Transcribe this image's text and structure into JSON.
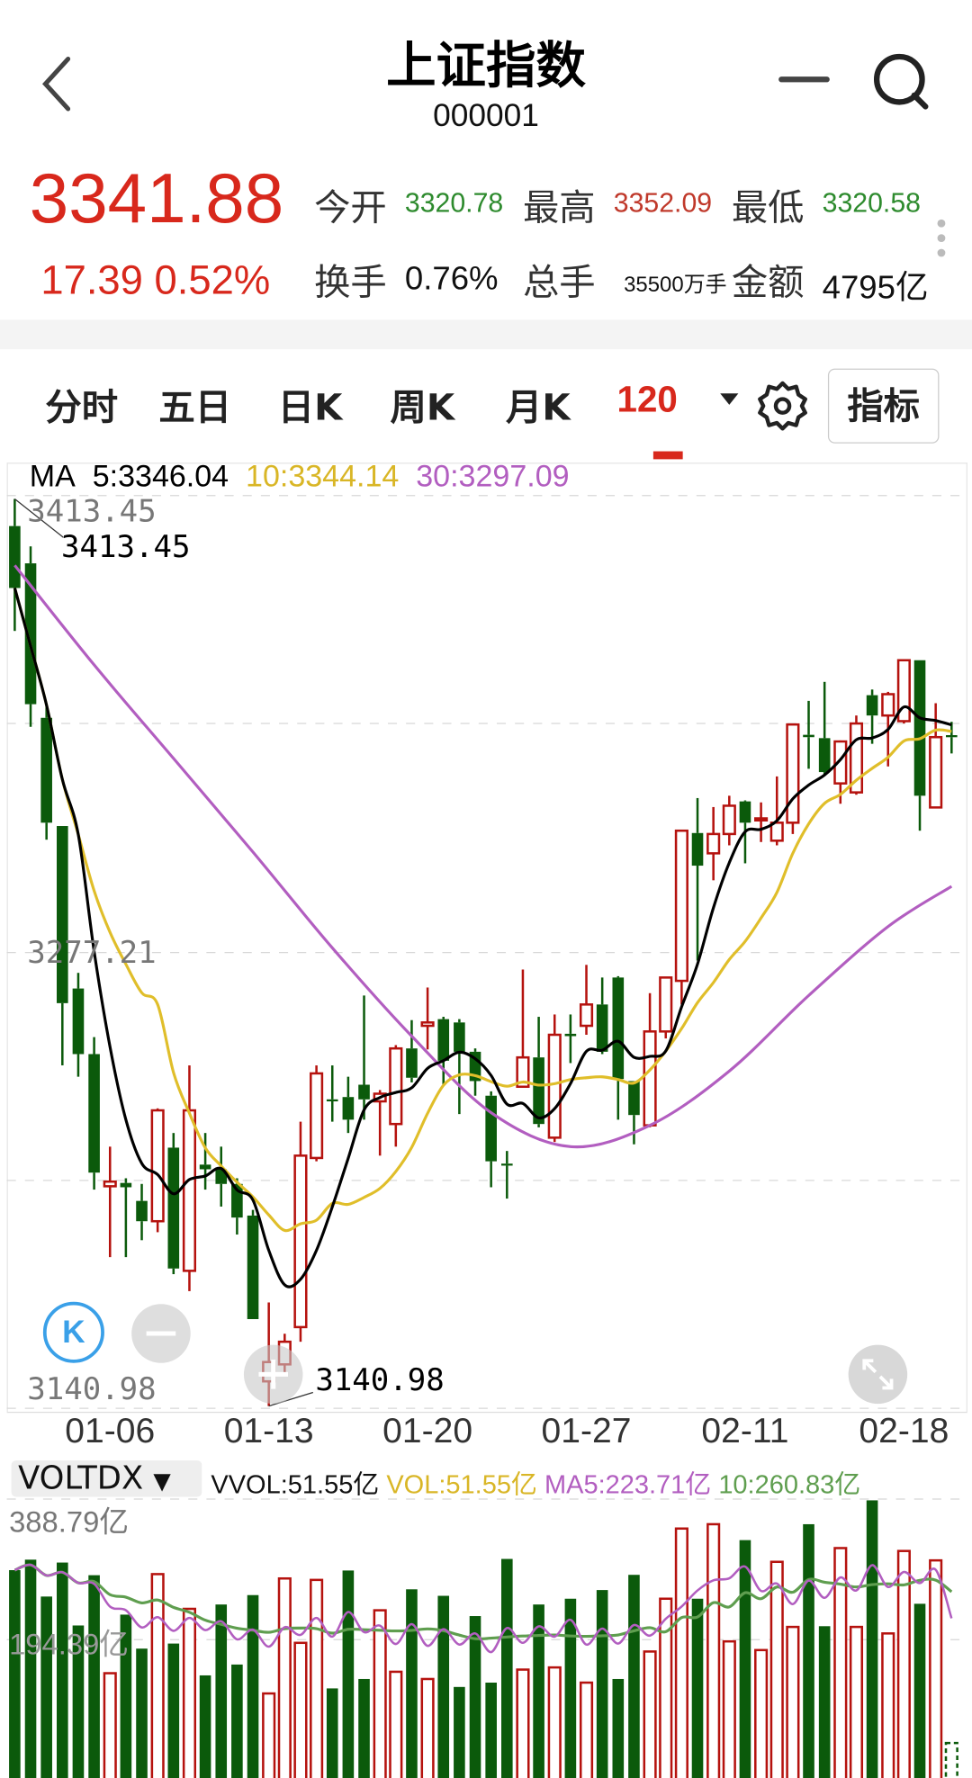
{
  "header": {
    "title": "上证指数",
    "code": "000001",
    "back_icon": "chevron-left-icon",
    "minimize_icon": "minus-icon",
    "search_icon": "search-icon"
  },
  "quote": {
    "price": "3341.88",
    "change": "17.39",
    "change_pct": "0.52%",
    "stats": [
      {
        "label": "今开",
        "value": "3320.78",
        "color": "#2e8b2e"
      },
      {
        "label": "最高",
        "value": "3352.09",
        "color": "#c0392b"
      },
      {
        "label": "最低",
        "value": "3320.58",
        "color": "#2e8b2e"
      },
      {
        "label": "换手",
        "value": "0.76%",
        "color": "#111111"
      },
      {
        "label": "总手",
        "value": "35500万手",
        "color": "#111111"
      },
      {
        "label": "金额",
        "value": "4795亿",
        "color": "#111111"
      }
    ]
  },
  "tabs": [
    {
      "label": "分时"
    },
    {
      "label": "五日"
    },
    {
      "label": "日K"
    },
    {
      "label": "周K"
    },
    {
      "label": "月K"
    },
    {
      "label": "120",
      "active": true
    }
  ],
  "toolbar": {
    "dropdown_icon": "triangle-down-icon",
    "settings_icon": "gear-icon",
    "indicator_label": "指标"
  },
  "ma_legend": {
    "label": "MA",
    "ma5": "5:3346.04",
    "ma10": "10:3344.14",
    "ma30": "30:3297.09"
  },
  "colors": {
    "up": "#b5120e",
    "down": "#0b5a0b",
    "ma5": "#000000",
    "ma10": "#e0be2a",
    "ma30": "#b25ec0",
    "vma5": "#b25ec0",
    "vma10": "#5f9e4f",
    "accent": "#d8281c"
  },
  "chart_data": {
    "type": "candlestick",
    "price_axis_labels": [
      "3413.45",
      "3277.21",
      "3140.98"
    ],
    "ylim": [
      3140.98,
      3413.45
    ],
    "high_marker": "3413.45",
    "low_marker": "3140.98",
    "x_ticks": [
      {
        "index": 6,
        "label": "01-06"
      },
      {
        "index": 16,
        "label": "01-13"
      },
      {
        "index": 26,
        "label": "01-20"
      },
      {
        "index": 36,
        "label": "01-27"
      },
      {
        "index": 46,
        "label": "02-11"
      },
      {
        "index": 56,
        "label": "02-18"
      }
    ],
    "ohlc": [
      [
        3405.3,
        3413.45,
        3373.8,
        3386.7
      ],
      [
        3394.1,
        3399.2,
        3345.0,
        3351.8
      ],
      [
        3347.7,
        3351.1,
        3311.1,
        3316.2
      ],
      [
        3315.2,
        3315.2,
        3243.3,
        3262.0
      ],
      [
        3266.4,
        3271.1,
        3239.9,
        3246.7
      ],
      [
        3246.7,
        3251.8,
        3206.0,
        3211.1
      ],
      [
        3207.0,
        3218.9,
        3185.7,
        3208.4
      ],
      [
        3208.0,
        3209.4,
        3185.7,
        3206.7
      ],
      [
        3202.6,
        3207.7,
        3190.8,
        3196.5
      ],
      [
        3196.5,
        3230.4,
        3193.2,
        3229.8
      ],
      [
        3218.6,
        3223.0,
        3180.6,
        3182.3
      ],
      [
        3181.6,
        3243.3,
        3175.5,
        3229.8
      ],
      [
        3213.5,
        3223.0,
        3206.0,
        3212.1
      ],
      [
        3212.1,
        3218.9,
        3200.9,
        3207.7
      ],
      [
        3207.7,
        3209.4,
        3192.5,
        3197.6
      ],
      [
        3198.2,
        3199.9,
        3167.1,
        3167.1
      ],
      [
        3148.4,
        3172.1,
        3140.98,
        3154.2
      ],
      [
        3153.5,
        3162.7,
        3150.1,
        3160.3
      ],
      [
        3164.7,
        3226.4,
        3160.3,
        3216.2
      ],
      [
        3215.5,
        3243.3,
        3214.5,
        3240.9
      ],
      [
        3233.1,
        3243.3,
        3226.4,
        3232.5
      ],
      [
        3233.8,
        3239.9,
        3223.0,
        3227.0
      ],
      [
        3237.5,
        3264.3,
        3227.0,
        3233.1
      ],
      [
        3232.5,
        3235.9,
        3216.2,
        3234.8
      ],
      [
        3225.7,
        3249.4,
        3218.9,
        3248.4
      ],
      [
        3248.4,
        3256.9,
        3238.2,
        3239.6
      ],
      [
        3255.2,
        3266.7,
        3248.1,
        3256.2
      ],
      [
        3257.2,
        3257.9,
        3237.5,
        3244.7
      ],
      [
        3256.2,
        3257.2,
        3228.7,
        3247.4
      ],
      [
        3247.4,
        3248.4,
        3234.2,
        3238.6
      ],
      [
        3234.2,
        3235.5,
        3206.7,
        3214.5
      ],
      [
        3213.8,
        3217.6,
        3203.3,
        3213.2
      ],
      [
        3236.9,
        3272.1,
        3236.9,
        3245.7
      ],
      [
        3245.7,
        3257.9,
        3224.7,
        3225.7
      ],
      [
        3221.6,
        3258.6,
        3220.3,
        3252.5
      ],
      [
        3252.8,
        3258.6,
        3244.0,
        3252.1
      ],
      [
        3255.2,
        3273.5,
        3252.5,
        3261.6
      ],
      [
        3261.6,
        3269.7,
        3246.7,
        3247.4
      ],
      [
        3269.7,
        3270.1,
        3227.0,
        3239.2
      ],
      [
        3238.6,
        3238.6,
        3219.6,
        3228.4
      ],
      [
        3225.3,
        3265.0,
        3224.7,
        3253.5
      ],
      [
        3253.5,
        3269.7,
        3251.4,
        3269.7
      ],
      [
        3268.7,
        3313.8,
        3261.6,
        3313.8
      ],
      [
        3313.1,
        3323.6,
        3274.8,
        3303.3
      ],
      [
        3307.0,
        3320.9,
        3298.9,
        3312.8
      ],
      [
        3312.8,
        3324.3,
        3309.4,
        3321.3
      ],
      [
        3322.6,
        3322.9,
        3304.0,
        3316.2
      ],
      [
        3316.9,
        3322.3,
        3310.4,
        3317.5
      ],
      [
        3310.8,
        3330.1,
        3309.4,
        3316.2
      ],
      [
        3316.2,
        3345.7,
        3312.8,
        3345.7
      ],
      [
        3342.6,
        3352.8,
        3332.4,
        3341.9
      ],
      [
        3341.6,
        3358.5,
        3330.8,
        3331.4
      ],
      [
        3328.0,
        3340.9,
        3321.9,
        3340.6
      ],
      [
        3325.3,
        3348.4,
        3324.6,
        3346.0
      ],
      [
        3354.5,
        3356.2,
        3339.9,
        3348.4
      ],
      [
        3348.4,
        3355.5,
        3333.1,
        3354.8
      ],
      [
        3346.7,
        3365.3,
        3346.0,
        3365.0
      ],
      [
        3365.0,
        3365.0,
        3313.8,
        3324.3
      ],
      [
        3320.78,
        3352.09,
        3320.58,
        3341.9
      ],
      [
        3342.5,
        3346.5,
        3337.0,
        3341.88
      ]
    ],
    "ma30_estimate": [
      [
        0,
        3393.5
      ],
      [
        5,
        3363.6
      ],
      [
        10,
        3335.5
      ],
      [
        15,
        3307.4
      ],
      [
        20,
        3278.6
      ],
      [
        25,
        3252.1
      ],
      [
        30,
        3229.1
      ],
      [
        35,
        3218.9
      ],
      [
        40,
        3225.3
      ],
      [
        45,
        3241.6
      ],
      [
        50,
        3264.3
      ],
      [
        55,
        3285.0
      ],
      [
        59,
        3297.09
      ]
    ],
    "volume": {
      "unit": "亿",
      "axis_labels": [
        "388.79亿",
        "194.39亿"
      ],
      "ylim": [
        0,
        388.79
      ],
      "values": [
        290.5,
        305,
        254,
        301,
        214,
        283.5,
        148,
        229,
        182,
        285,
        189,
        237,
        145,
        243,
        160,
        256,
        120,
        279,
        190,
        277,
        127,
        290,
        140,
        235,
        150,
        264,
        140,
        255,
        129,
        227,
        135,
        306,
        153,
        243,
        156,
        251,
        135,
        263,
        140,
        284,
        178,
        251,
        348,
        251,
        354,
        192,
        332,
        180,
        302,
        212,
        354,
        213,
        321,
        212,
        387,
        203,
        317,
        244,
        304,
        51.55
      ]
    }
  },
  "volume_panel": {
    "indicator": "VOLTDX",
    "vvol": "VVOL:51.55亿",
    "vol": "VOL:51.55亿",
    "ma5": "MA5:223.71亿",
    "ma10": "10:260.83亿"
  },
  "floating": {
    "k_label": "K",
    "zoom_out_icon": "minus-circle-icon",
    "zoom_in_icon": "plus-circle-icon",
    "fullscreen_icon": "expand-icon"
  }
}
